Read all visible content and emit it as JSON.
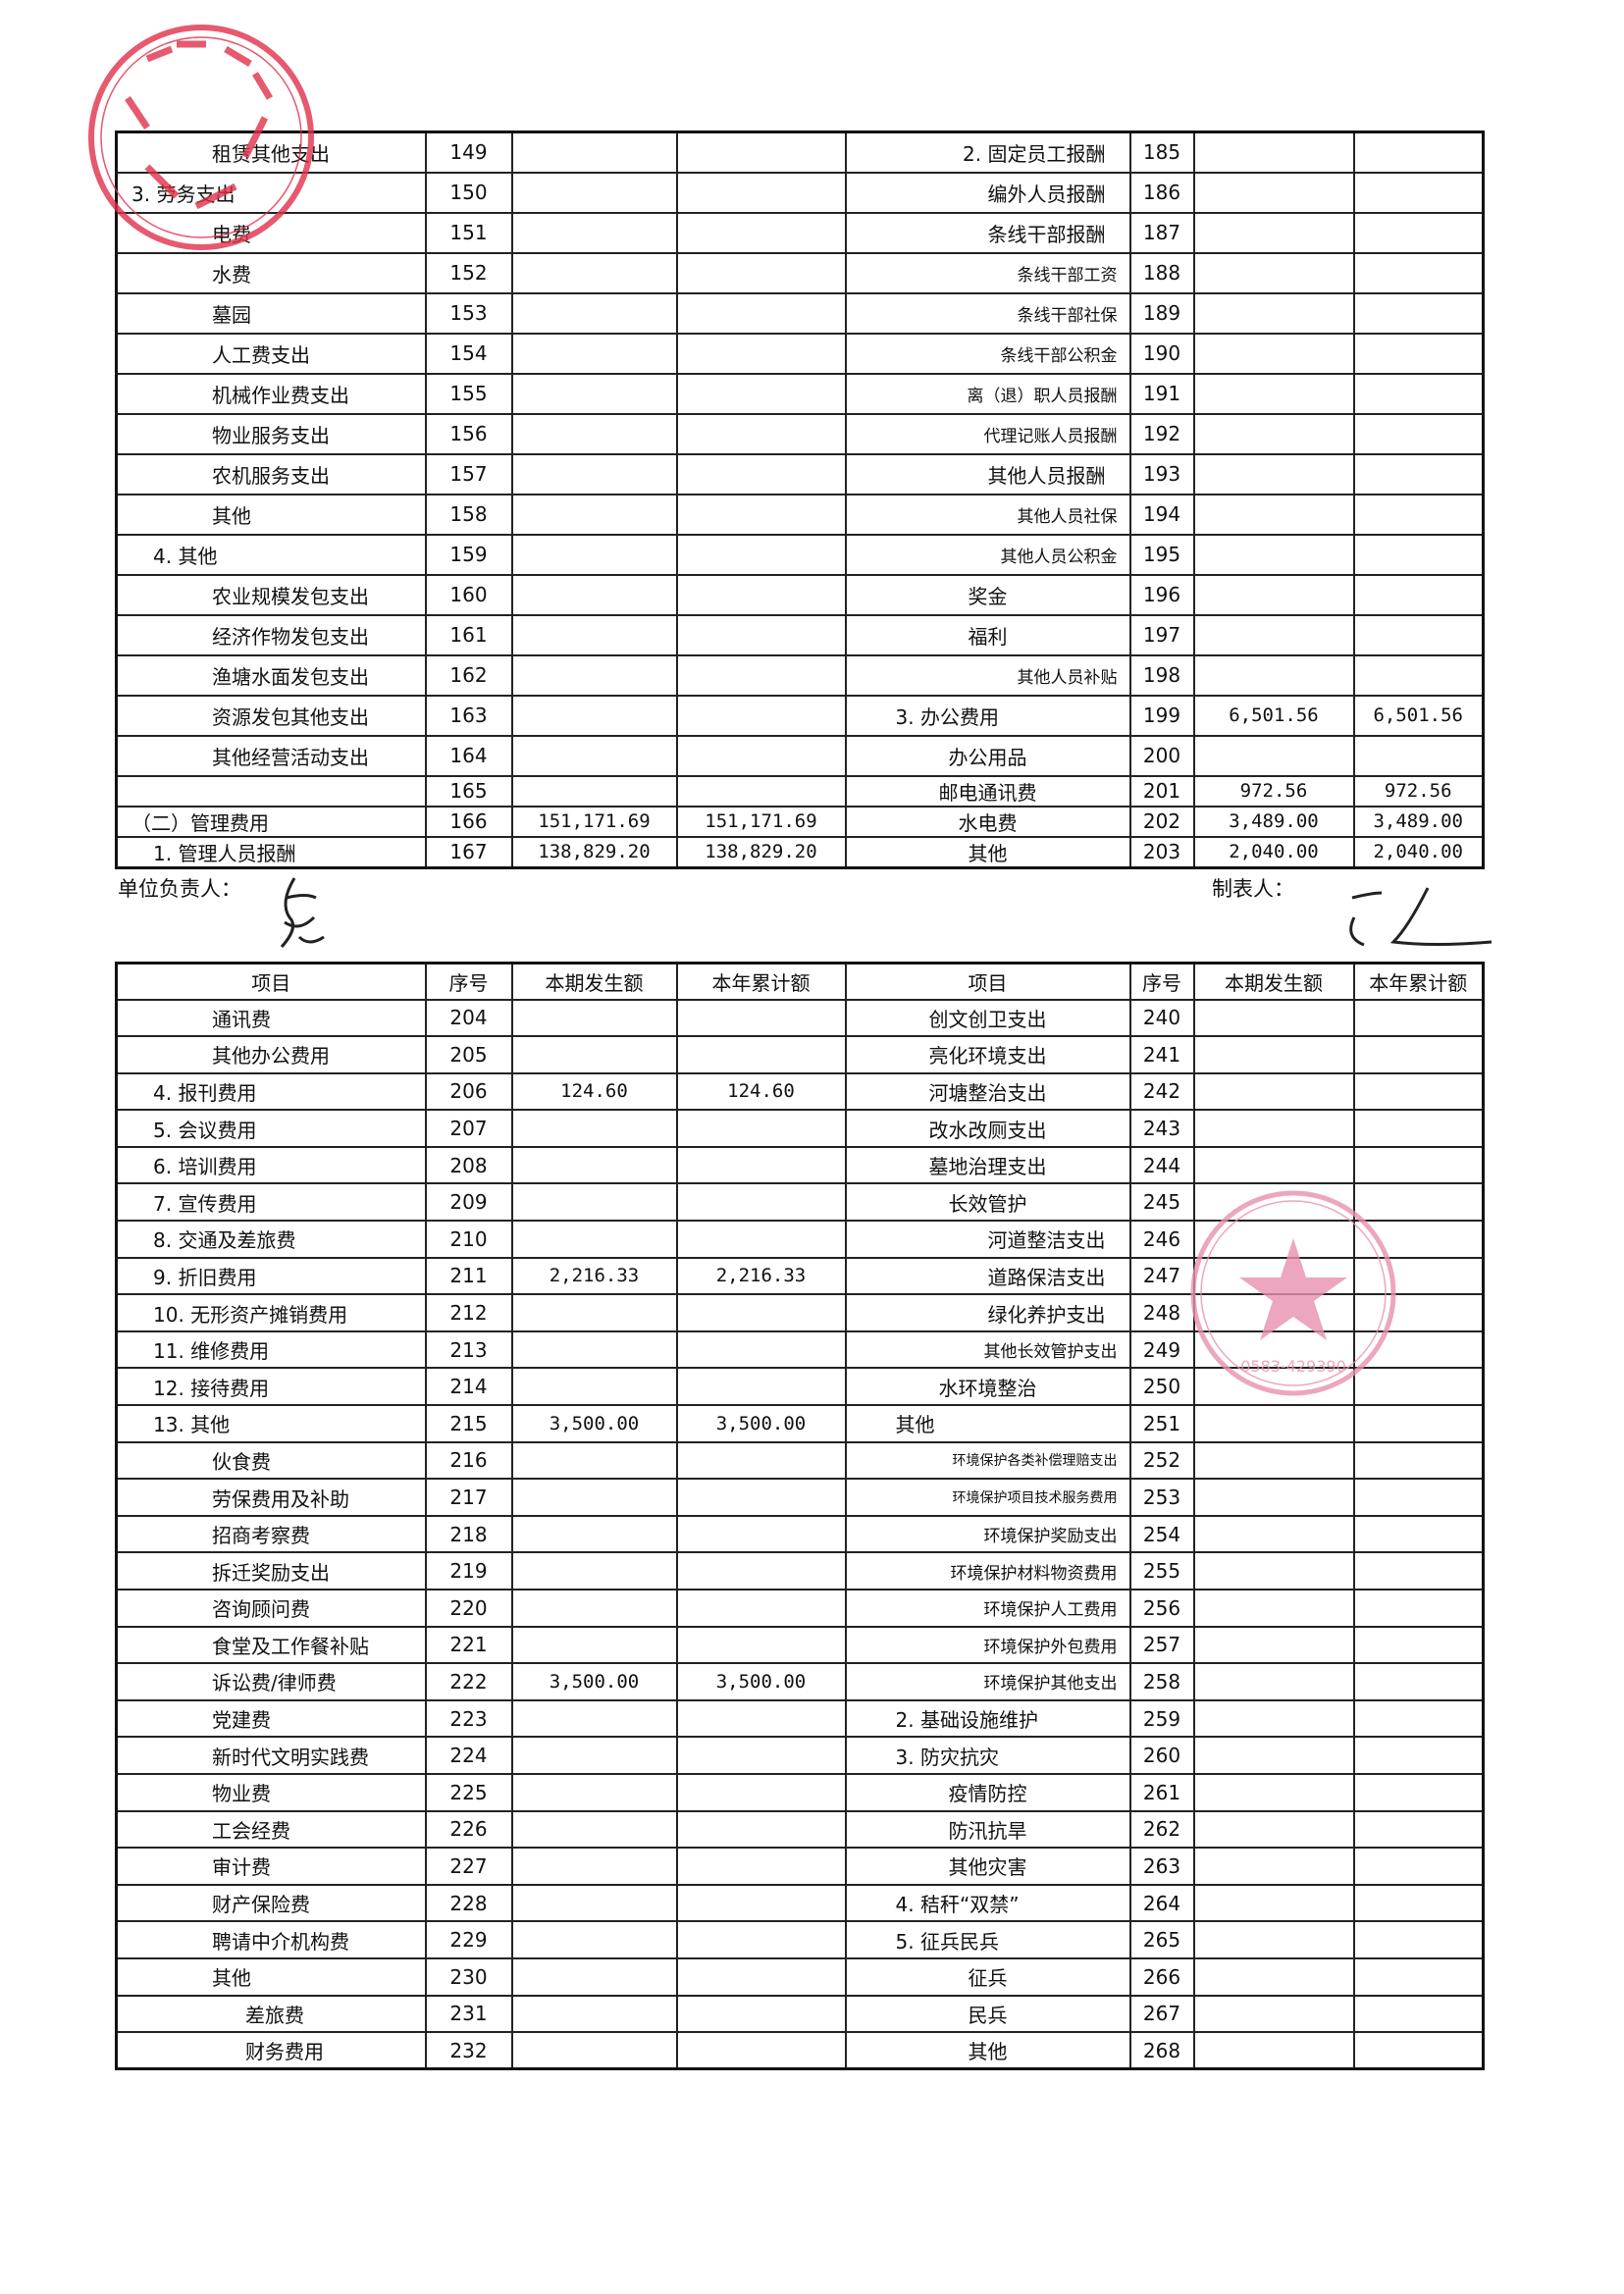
{
  "table1": {
    "rows": [
      {
        "l_item": "租赁其他支出",
        "l_level": 2,
        "l_no": "149",
        "l_cur": "",
        "l_ytd": "",
        "r_item": "2. 固定员工报酬",
        "r_level": 1,
        "r_no": "185",
        "r_cur": "",
        "r_ytd": ""
      },
      {
        "l_item": "3. 劳务支出",
        "l_level": 0,
        "l_no": "150",
        "l_cur": "",
        "l_ytd": "",
        "r_item": "编外人员报酬",
        "r_level": 1,
        "r_no": "186",
        "r_cur": "",
        "r_ytd": ""
      },
      {
        "l_item": "电费",
        "l_level": 2,
        "l_no": "151",
        "l_cur": "",
        "l_ytd": "",
        "r_item": "条线干部报酬",
        "r_level": 1,
        "r_no": "187",
        "r_cur": "",
        "r_ytd": ""
      },
      {
        "l_item": "水费",
        "l_level": 2,
        "l_no": "152",
        "l_cur": "",
        "l_ytd": "",
        "r_item": "条线干部工资",
        "r_level": 2,
        "r_no": "188",
        "r_cur": "",
        "r_ytd": ""
      },
      {
        "l_item": "墓园",
        "l_level": 2,
        "l_no": "153",
        "l_cur": "",
        "l_ytd": "",
        "r_item": "条线干部社保",
        "r_level": 2,
        "r_no": "189",
        "r_cur": "",
        "r_ytd": ""
      },
      {
        "l_item": "人工费支出",
        "l_level": 2,
        "l_no": "154",
        "l_cur": "",
        "l_ytd": "",
        "r_item": "条线干部公积金",
        "r_level": 2,
        "r_no": "190",
        "r_cur": "",
        "r_ytd": ""
      },
      {
        "l_item": "机械作业费支出",
        "l_level": 2,
        "l_no": "155",
        "l_cur": "",
        "l_ytd": "",
        "r_item": "离（退）职人员报酬",
        "r_level": 2,
        "r_no": "191",
        "r_cur": "",
        "r_ytd": ""
      },
      {
        "l_item": "物业服务支出",
        "l_level": 2,
        "l_no": "156",
        "l_cur": "",
        "l_ytd": "",
        "r_item": "代理记账人员报酬",
        "r_level": 2,
        "r_no": "192",
        "r_cur": "",
        "r_ytd": ""
      },
      {
        "l_item": "农机服务支出",
        "l_level": 2,
        "l_no": "157",
        "l_cur": "",
        "l_ytd": "",
        "r_item": "其他人员报酬",
        "r_level": 1,
        "r_no": "193",
        "r_cur": "",
        "r_ytd": ""
      },
      {
        "l_item": "其他",
        "l_level": 2,
        "l_no": "158",
        "l_cur": "",
        "l_ytd": "",
        "r_item": "其他人员社保",
        "r_level": 2,
        "r_no": "194",
        "r_cur": "",
        "r_ytd": ""
      },
      {
        "l_item": "4. 其他",
        "l_level": 1,
        "l_no": "159",
        "l_cur": "",
        "l_ytd": "",
        "r_item": "其他人员公积金",
        "r_level": 2,
        "r_no": "195",
        "r_cur": "",
        "r_ytd": ""
      },
      {
        "l_item": "农业规模发包支出",
        "l_level": 2,
        "l_no": "160",
        "l_cur": "",
        "l_ytd": "",
        "r_item": "奖金",
        "r_level": 3,
        "r_no": "196",
        "r_cur": "",
        "r_ytd": ""
      },
      {
        "l_item": "经济作物发包支出",
        "l_level": 2,
        "l_no": "161",
        "l_cur": "",
        "l_ytd": "",
        "r_item": "福利",
        "r_level": 3,
        "r_no": "197",
        "r_cur": "",
        "r_ytd": ""
      },
      {
        "l_item": "渔塘水面发包支出",
        "l_level": 2,
        "l_no": "162",
        "l_cur": "",
        "l_ytd": "",
        "r_item": "其他人员补贴",
        "r_level": 2,
        "r_no": "198",
        "r_cur": "",
        "r_ytd": ""
      },
      {
        "l_item": "资源发包其他支出",
        "l_level": 2,
        "l_no": "163",
        "l_cur": "",
        "l_ytd": "",
        "r_item": "3. 办公费用",
        "r_level": 0,
        "r_no": "199",
        "r_cur": "6,501.56",
        "r_ytd": "6,501.56"
      },
      {
        "l_item": "其他经营活动支出",
        "l_level": 2,
        "l_no": "164",
        "l_cur": "",
        "l_ytd": "",
        "r_item": "办公用品",
        "r_level": 3,
        "r_no": "200",
        "r_cur": "",
        "r_ytd": ""
      },
      {
        "l_item": "",
        "l_level": 2,
        "l_no": "165",
        "l_cur": "",
        "l_ytd": "",
        "r_item": "邮电通讯费",
        "r_level": 3,
        "r_no": "201",
        "r_cur": "972.56",
        "r_ytd": "972.56"
      },
      {
        "l_item": "（二）管理费用",
        "l_level": 0,
        "l_no": "166",
        "l_cur": "151,171.69",
        "l_ytd": "151,171.69",
        "r_item": "水电费",
        "r_level": 3,
        "r_no": "202",
        "r_cur": "3,489.00",
        "r_ytd": "3,489.00"
      },
      {
        "l_item": "1. 管理人员报酬",
        "l_level": 1,
        "l_no": "167",
        "l_cur": "138,829.20",
        "l_ytd": "138,829.20",
        "r_item": "其他",
        "r_level": 3,
        "r_no": "203",
        "r_cur": "2,040.00",
        "r_ytd": "2,040.00"
      }
    ]
  },
  "signatures": {
    "unit_head_label": "单位负责人：",
    "preparer_label": "制表人："
  },
  "table2": {
    "headers": [
      "项目",
      "序号",
      "本期发生额",
      "本年累计额",
      "项目",
      "序号",
      "本期发生额",
      "本年累计额"
    ],
    "rows": [
      {
        "l_item": "通讯费",
        "l_level": 2,
        "l_no": "204",
        "l_cur": "",
        "l_ytd": "",
        "r_item": "创文创卫支出",
        "r_level": 3,
        "r_no": "240",
        "r_cur": "",
        "r_ytd": ""
      },
      {
        "l_item": "其他办公费用",
        "l_level": 2,
        "l_no": "205",
        "l_cur": "",
        "l_ytd": "",
        "r_item": "亮化环境支出",
        "r_level": 3,
        "r_no": "241",
        "r_cur": "",
        "r_ytd": ""
      },
      {
        "l_item": "4. 报刊费用",
        "l_level": 1,
        "l_no": "206",
        "l_cur": "124.60",
        "l_ytd": "124.60",
        "r_item": "河塘整治支出",
        "r_level": 3,
        "r_no": "242",
        "r_cur": "",
        "r_ytd": ""
      },
      {
        "l_item": "5. 会议费用",
        "l_level": 1,
        "l_no": "207",
        "l_cur": "",
        "l_ytd": "",
        "r_item": "改水改厕支出",
        "r_level": 3,
        "r_no": "243",
        "r_cur": "",
        "r_ytd": ""
      },
      {
        "l_item": "6. 培训费用",
        "l_level": 1,
        "l_no": "208",
        "l_cur": "",
        "l_ytd": "",
        "r_item": "墓地治理支出",
        "r_level": 3,
        "r_no": "244",
        "r_cur": "",
        "r_ytd": ""
      },
      {
        "l_item": "7. 宣传费用",
        "l_level": 1,
        "l_no": "209",
        "l_cur": "",
        "l_ytd": "",
        "r_item": "长效管护",
        "r_level": 3,
        "r_no": "245",
        "r_cur": "",
        "r_ytd": ""
      },
      {
        "l_item": "8. 交通及差旅费",
        "l_level": 1,
        "l_no": "210",
        "l_cur": "",
        "l_ytd": "",
        "r_item": "河道整洁支出",
        "r_level": 1,
        "r_no": "246",
        "r_cur": "",
        "r_ytd": ""
      },
      {
        "l_item": "9. 折旧费用",
        "l_level": 1,
        "l_no": "211",
        "l_cur": "2,216.33",
        "l_ytd": "2,216.33",
        "r_item": "道路保洁支出",
        "r_level": 1,
        "r_no": "247",
        "r_cur": "",
        "r_ytd": ""
      },
      {
        "l_item": "10. 无形资产摊销费用",
        "l_level": 1,
        "l_no": "212",
        "l_cur": "",
        "l_ytd": "",
        "r_item": "绿化养护支出",
        "r_level": 1,
        "r_no": "248",
        "r_cur": "",
        "r_ytd": ""
      },
      {
        "l_item": "11. 维修费用",
        "l_level": 1,
        "l_no": "213",
        "l_cur": "",
        "l_ytd": "",
        "r_item": "其他长效管护支出",
        "r_level": 2,
        "r_no": "249",
        "r_cur": "",
        "r_ytd": ""
      },
      {
        "l_item": "12. 接待费用",
        "l_level": 1,
        "l_no": "214",
        "l_cur": "",
        "l_ytd": "",
        "r_item": "水环境整治",
        "r_level": 3,
        "r_no": "250",
        "r_cur": "",
        "r_ytd": ""
      },
      {
        "l_item": "13. 其他",
        "l_level": 1,
        "l_no": "215",
        "l_cur": "3,500.00",
        "l_ytd": "3,500.00",
        "r_item": "其他",
        "r_level": 0,
        "r_no": "251",
        "r_cur": "",
        "r_ytd": ""
      },
      {
        "l_item": "伙食费",
        "l_level": 2,
        "l_no": "216",
        "l_cur": "",
        "l_ytd": "",
        "r_item": "环境保护各类补偿理赔支出",
        "r_level": 4,
        "r_no": "252",
        "r_cur": "",
        "r_ytd": ""
      },
      {
        "l_item": "劳保费用及补助",
        "l_level": 2,
        "l_no": "217",
        "l_cur": "",
        "l_ytd": "",
        "r_item": "环境保护项目技术服务费用",
        "r_level": 4,
        "r_no": "253",
        "r_cur": "",
        "r_ytd": ""
      },
      {
        "l_item": "招商考察费",
        "l_level": 2,
        "l_no": "218",
        "l_cur": "",
        "l_ytd": "",
        "r_item": "环境保护奖励支出",
        "r_level": 2,
        "r_no": "254",
        "r_cur": "",
        "r_ytd": ""
      },
      {
        "l_item": "拆迁奖励支出",
        "l_level": 2,
        "l_no": "219",
        "l_cur": "",
        "l_ytd": "",
        "r_item": "环境保护材料物资费用",
        "r_level": 2,
        "r_no": "255",
        "r_cur": "",
        "r_ytd": ""
      },
      {
        "l_item": "咨询顾问费",
        "l_level": 2,
        "l_no": "220",
        "l_cur": "",
        "l_ytd": "",
        "r_item": "环境保护人工费用",
        "r_level": 2,
        "r_no": "256",
        "r_cur": "",
        "r_ytd": ""
      },
      {
        "l_item": "食堂及工作餐补贴",
        "l_level": 2,
        "l_no": "221",
        "l_cur": "",
        "l_ytd": "",
        "r_item": "环境保护外包费用",
        "r_level": 2,
        "r_no": "257",
        "r_cur": "",
        "r_ytd": ""
      },
      {
        "l_item": "诉讼费/律师费",
        "l_level": 2,
        "l_no": "222",
        "l_cur": "3,500.00",
        "l_ytd": "3,500.00",
        "r_item": "环境保护其他支出",
        "r_level": 2,
        "r_no": "258",
        "r_cur": "",
        "r_ytd": ""
      },
      {
        "l_item": "党建费",
        "l_level": 2,
        "l_no": "223",
        "l_cur": "",
        "l_ytd": "",
        "r_item": "2. 基础设施维护",
        "r_level": 0,
        "r_no": "259",
        "r_cur": "",
        "r_ytd": ""
      },
      {
        "l_item": "新时代文明实践费",
        "l_level": 2,
        "l_no": "224",
        "l_cur": "",
        "l_ytd": "",
        "r_item": "3. 防灾抗灾",
        "r_level": 0,
        "r_no": "260",
        "r_cur": "",
        "r_ytd": ""
      },
      {
        "l_item": "物业费",
        "l_level": 2,
        "l_no": "225",
        "l_cur": "",
        "l_ytd": "",
        "r_item": "疫情防控",
        "r_level": 3,
        "r_no": "261",
        "r_cur": "",
        "r_ytd": ""
      },
      {
        "l_item": "工会经费",
        "l_level": 2,
        "l_no": "226",
        "l_cur": "",
        "l_ytd": "",
        "r_item": "防汛抗旱",
        "r_level": 3,
        "r_no": "262",
        "r_cur": "",
        "r_ytd": ""
      },
      {
        "l_item": "审计费",
        "l_level": 2,
        "l_no": "227",
        "l_cur": "",
        "l_ytd": "",
        "r_item": "其他灾害",
        "r_level": 3,
        "r_no": "263",
        "r_cur": "",
        "r_ytd": ""
      },
      {
        "l_item": "财产保险费",
        "l_level": 2,
        "l_no": "228",
        "l_cur": "",
        "l_ytd": "",
        "r_item": "4. 秸秆“双禁”",
        "r_level": 0,
        "r_no": "264",
        "r_cur": "",
        "r_ytd": ""
      },
      {
        "l_item": "聘请中介机构费",
        "l_level": 2,
        "l_no": "229",
        "l_cur": "",
        "l_ytd": "",
        "r_item": "5. 征兵民兵",
        "r_level": 0,
        "r_no": "265",
        "r_cur": "",
        "r_ytd": ""
      },
      {
        "l_item": "其他",
        "l_level": 2,
        "l_no": "230",
        "l_cur": "",
        "l_ytd": "",
        "r_item": "征兵",
        "r_level": 3,
        "r_no": "266",
        "r_cur": "",
        "r_ytd": ""
      },
      {
        "l_item": "差旅费",
        "l_level": 3,
        "l_no": "231",
        "l_cur": "",
        "l_ytd": "",
        "r_item": "民兵",
        "r_level": 3,
        "r_no": "267",
        "r_cur": "",
        "r_ytd": ""
      },
      {
        "l_item": "财务费用",
        "l_level": 3,
        "l_no": "232",
        "l_cur": "",
        "l_ytd": "",
        "r_item": "其他",
        "r_level": 3,
        "r_no": "268",
        "r_cur": "",
        "r_ytd": ""
      }
    ]
  },
  "stamps": {
    "colors": {
      "top_left": "#e0304a",
      "bottom_right": "#e890b0"
    },
    "bottom_right_number": "0583-429390"
  }
}
